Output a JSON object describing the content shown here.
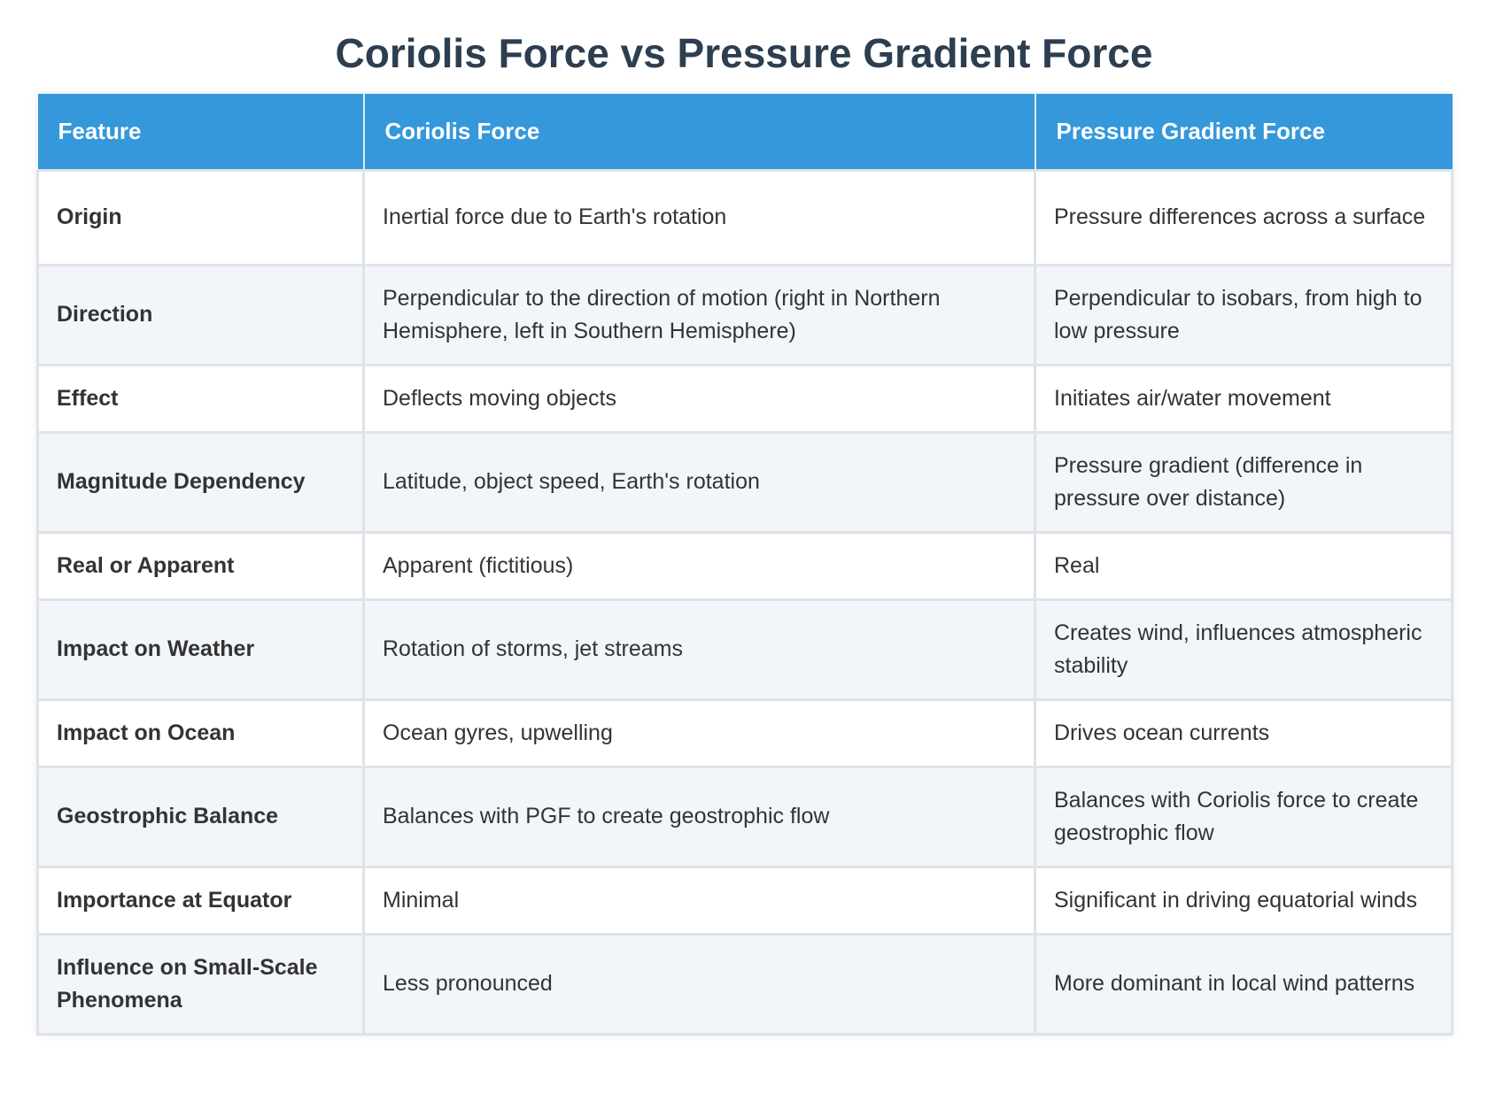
{
  "title": "Coriolis Force vs Pressure Gradient Force",
  "table": {
    "headers": [
      "Feature",
      "Coriolis Force",
      "Pressure Gradient Force"
    ],
    "rows": [
      [
        "Origin",
        "Inertial force due to Earth's rotation",
        "Pressure differences across a surface"
      ],
      [
        "Direction",
        "Perpendicular to the direction of motion (right in Northern Hemisphere, left in Southern Hemisphere)",
        "Perpendicular to isobars, from high to low pressure"
      ],
      [
        "Effect",
        "Deflects moving objects",
        "Initiates air/water movement"
      ],
      [
        "Magnitude Dependency",
        "Latitude, object speed, Earth's rotation",
        "Pressure gradient (difference in pressure over distance)"
      ],
      [
        "Real or Apparent",
        "Apparent (fictitious)",
        "Real"
      ],
      [
        "Impact on Weather",
        "Rotation of storms, jet streams",
        "Creates wind, influences atmospheric stability"
      ],
      [
        "Impact on Ocean",
        "Ocean gyres, upwelling",
        "Drives ocean currents"
      ],
      [
        "Geostrophic Balance",
        "Balances with PGF to create geostrophic flow",
        "Balances with Coriolis force to create geostrophic flow"
      ],
      [
        "Importance at Equator",
        "Minimal",
        "Significant in driving equatorial winds"
      ],
      [
        "Influence on Small-Scale Phenomena",
        "Less pronounced",
        "More dominant in local wind patterns"
      ]
    ]
  },
  "colors": {
    "title": "#2c3e50",
    "header_bg": "#3498db",
    "header_text": "#ffffff",
    "row_alt_bg": "#f2f6fa",
    "border": "#dfe3e7"
  }
}
